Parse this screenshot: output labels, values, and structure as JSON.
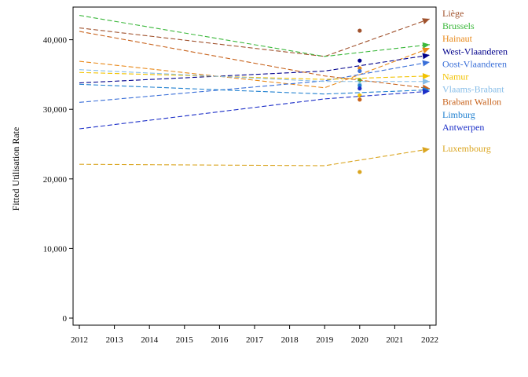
{
  "chart_data": {
    "type": "line",
    "title": "",
    "xlabel": "",
    "ylabel": "Fitted Utilisation Rate",
    "xlim": [
      2012,
      2022
    ],
    "ylim": [
      0,
      45000
    ],
    "x_ticks": [
      2012,
      2013,
      2014,
      2015,
      2016,
      2017,
      2018,
      2019,
      2020,
      2021,
      2022
    ],
    "y_ticks": [
      0,
      10000,
      20000,
      30000,
      40000
    ],
    "y_tick_labels": [
      "0",
      "10,000",
      "20,000",
      "30,000",
      "40,000"
    ],
    "grid": false,
    "legend_position": "right",
    "series": [
      {
        "name": "Liège",
        "color": "#a0522d",
        "trend": [
          [
            2012,
            41700
          ],
          [
            2019,
            37600
          ],
          [
            2022,
            43000
          ]
        ],
        "observed_2020": 41300
      },
      {
        "name": "Brussels",
        "color": "#3cb83c",
        "trend": [
          [
            2012,
            43500
          ],
          [
            2019,
            37600
          ],
          [
            2022,
            39300
          ]
        ],
        "observed_2020": 34200
      },
      {
        "name": "Hainaut",
        "color": "#e8891a",
        "trend": [
          [
            2012,
            36900
          ],
          [
            2019,
            33100
          ],
          [
            2022,
            38800
          ]
        ],
        "observed_2020": 35900
      },
      {
        "name": "West-Vlaanderen",
        "color": "#00008b",
        "trend": [
          [
            2012,
            33800
          ],
          [
            2019,
            35500
          ],
          [
            2022,
            37800
          ]
        ],
        "observed_2020": 37000
      },
      {
        "name": "Oost-Vlaanderen",
        "color": "#3a6fd8",
        "trend": [
          [
            2012,
            31000
          ],
          [
            2019,
            34100
          ],
          [
            2022,
            36800
          ]
        ],
        "observed_2020": 35500
      },
      {
        "name": "Namur",
        "color": "#f2c200",
        "trend": [
          [
            2012,
            35300
          ],
          [
            2019,
            34300
          ],
          [
            2022,
            34800
          ]
        ],
        "observed_2020": 32000
      },
      {
        "name": "Vlaams-Brabant",
        "color": "#87bde8",
        "trend": [
          [
            2012,
            35700
          ],
          [
            2019,
            34000
          ],
          [
            2022,
            34000
          ]
        ],
        "observed_2020": 33600
      },
      {
        "name": "Brabant Wallon",
        "color": "#c8641e",
        "trend": [
          [
            2012,
            41200
          ],
          [
            2019,
            34800
          ],
          [
            2022,
            33000
          ]
        ],
        "observed_2020": 31400
      },
      {
        "name": "Limburg",
        "color": "#2080d0",
        "trend": [
          [
            2012,
            33600
          ],
          [
            2019,
            32200
          ],
          [
            2022,
            32800
          ]
        ],
        "observed_2020": 33400
      },
      {
        "name": "Antwerpen",
        "color": "#1c2fc8",
        "trend": [
          [
            2012,
            27200
          ],
          [
            2019,
            31500
          ],
          [
            2022,
            32600
          ]
        ],
        "observed_2020": 33000
      },
      {
        "name": "Luxembourg",
        "color": "#daa520",
        "trend": [
          [
            2012,
            22100
          ],
          [
            2019,
            21900
          ],
          [
            2022,
            24300
          ]
        ],
        "observed_2020": 21000
      }
    ]
  }
}
